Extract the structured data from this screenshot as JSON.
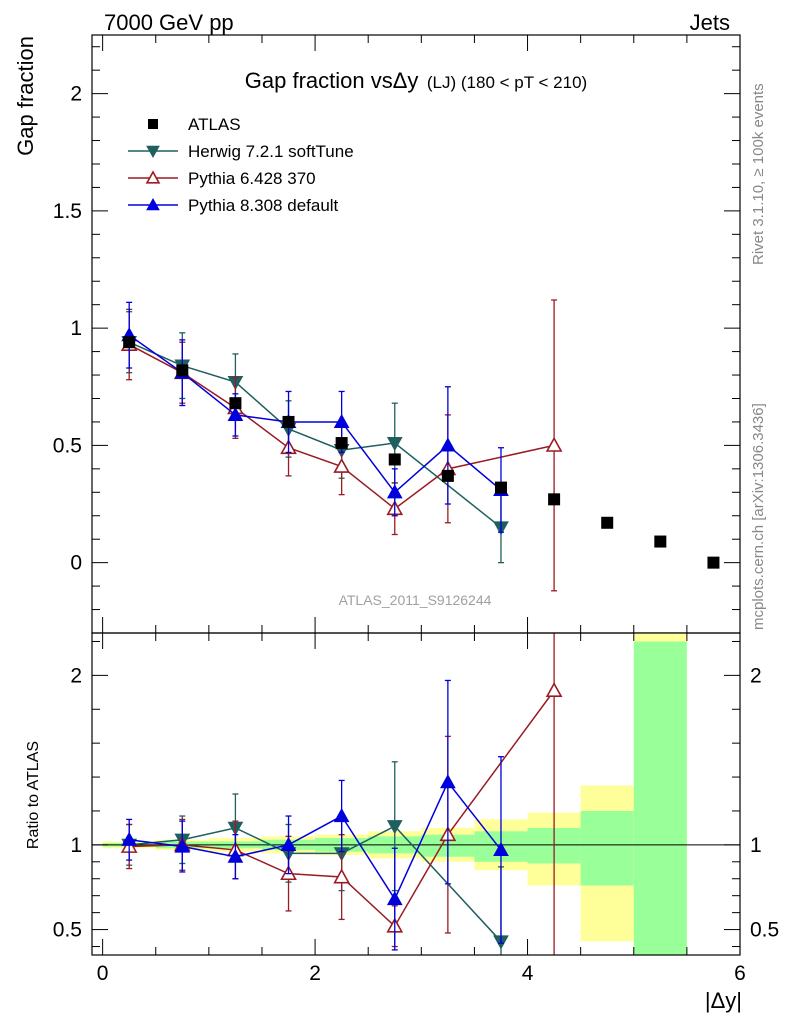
{
  "header": {
    "left": "7000 GeV pp",
    "right": "Jets"
  },
  "side_labels": {
    "rivet": "Rivet 3.1.10, ≥ 100k events",
    "mcplots": "mcplots.cern.ch [arXiv:1306.3436]"
  },
  "chart_data": {
    "type": "scatter",
    "title_main": "Gap fraction vsΔy",
    "title_sub": "(LJ) (180 < pT < 210)",
    "xlabel": "|Δy|",
    "ylabel_top": "Gap fraction",
    "ylabel_bottom": "Ratio to ATLAS",
    "watermark": "ATLAS_2011_S9126244",
    "xlim": [
      -0.1,
      6.0
    ],
    "top_ylim": [
      -0.3,
      2.25
    ],
    "bottom_ylim": [
      0.35,
      2.25
    ],
    "x_ticks": [
      0,
      2,
      4,
      6
    ],
    "top_y_ticks": [
      0,
      0.5,
      1,
      1.5,
      2
    ],
    "top_y_tick_labels": [
      "0",
      "0.5",
      "1",
      "1.5",
      "2"
    ],
    "bottom_y_ticks": [
      0.5,
      1,
      2
    ],
    "bottom_y_tick_labels": [
      "0.5",
      "1",
      "2"
    ],
    "x_tick_labels": [
      "0",
      "2",
      "4",
      "6"
    ],
    "data": {
      "name": "ATLAS",
      "color": "#000000",
      "x": [
        0.25,
        0.75,
        1.25,
        1.75,
        2.25,
        2.75,
        3.25,
        3.75,
        4.25,
        4.75,
        5.25,
        5.75
      ],
      "y": [
        0.94,
        0.82,
        0.68,
        0.6,
        0.51,
        0.44,
        0.37,
        0.32,
        0.27,
        0.17,
        0.09,
        0.0
      ]
    },
    "ratio_bands": [
      {
        "x0": 0.0,
        "x1": 0.5,
        "yellow": [
          0.98,
          1.02
        ],
        "green": [
          0.99,
          1.01
        ]
      },
      {
        "x0": 0.5,
        "x1": 1.0,
        "yellow": [
          0.97,
          1.03
        ],
        "green": [
          0.98,
          1.02
        ]
      },
      {
        "x0": 1.0,
        "x1": 1.5,
        "yellow": [
          0.96,
          1.04
        ],
        "green": [
          0.98,
          1.02
        ]
      },
      {
        "x0": 1.5,
        "x1": 2.0,
        "yellow": [
          0.95,
          1.05
        ],
        "green": [
          0.97,
          1.03
        ]
      },
      {
        "x0": 2.0,
        "x1": 2.5,
        "yellow": [
          0.94,
          1.06
        ],
        "green": [
          0.96,
          1.04
        ]
      },
      {
        "x0": 2.5,
        "x1": 3.0,
        "yellow": [
          0.92,
          1.08
        ],
        "green": [
          0.95,
          1.05
        ]
      },
      {
        "x0": 3.0,
        "x1": 3.5,
        "yellow": [
          0.9,
          1.1
        ],
        "green": [
          0.93,
          1.06
        ]
      },
      {
        "x0": 3.5,
        "x1": 4.0,
        "yellow": [
          0.85,
          1.15
        ],
        "green": [
          0.9,
          1.08
        ]
      },
      {
        "x0": 4.0,
        "x1": 4.5,
        "yellow": [
          0.76,
          1.19
        ],
        "green": [
          0.89,
          1.1
        ]
      },
      {
        "x0": 4.5,
        "x1": 5.0,
        "yellow": [
          0.43,
          1.35
        ],
        "green": [
          0.76,
          1.2
        ]
      },
      {
        "x0": 5.0,
        "x1": 5.5,
        "yellow": [
          0.35,
          2.25
        ],
        "green": [
          0.35,
          2.2
        ]
      }
    ],
    "series": [
      {
        "name": "Herwig 7.2.1 softTune",
        "color": "#1f5f5f",
        "marker": "triangle-down-filled",
        "x": [
          0.25,
          0.75,
          1.25,
          1.75,
          2.25,
          2.75,
          3.75
        ],
        "y": [
          0.94,
          0.84,
          0.77,
          0.57,
          0.48,
          0.51,
          0.15
        ],
        "err": [
          0.13,
          0.14,
          0.12,
          0.12,
          0.12,
          0.17,
          0.15
        ],
        "ratio": [
          1.0,
          1.03,
          1.1,
          0.95,
          0.95,
          1.11,
          0.43
        ],
        "ratio_err": [
          0.12,
          0.14,
          0.2,
          0.17,
          0.22,
          0.38,
          0.44
        ]
      },
      {
        "name": "Pythia 6.428 370",
        "color": "#9a1b24",
        "marker": "triangle-up-open",
        "x": [
          0.25,
          0.75,
          1.25,
          1.75,
          2.25,
          2.75,
          3.25,
          4.25
        ],
        "y": [
          0.93,
          0.81,
          0.66,
          0.49,
          0.41,
          0.23,
          0.4,
          0.5
        ],
        "err": [
          0.15,
          0.13,
          0.13,
          0.12,
          0.12,
          0.11,
          0.23,
          0.62
        ],
        "ratio": [
          0.99,
          1.0,
          0.97,
          0.83,
          0.81,
          0.52,
          1.06,
          1.91
        ],
        "ratio_err": [
          0.13,
          0.15,
          0.17,
          0.22,
          0.25,
          0.12,
          0.58,
          1.6
        ]
      },
      {
        "name": "Pythia 8.308 default",
        "color": "#0000dd",
        "marker": "triangle-up-filled",
        "x": [
          0.25,
          0.75,
          1.25,
          1.75,
          2.25,
          2.75,
          3.25,
          3.75
        ],
        "y": [
          0.97,
          0.81,
          0.63,
          0.6,
          0.6,
          0.3,
          0.5,
          0.31
        ],
        "err": [
          0.14,
          0.14,
          0.09,
          0.13,
          0.13,
          0.1,
          0.25,
          0.18
        ],
        "ratio": [
          1.03,
          0.99,
          0.93,
          1.0,
          1.17,
          0.68,
          1.37,
          0.97
        ],
        "ratio_err": [
          0.12,
          0.15,
          0.13,
          0.17,
          0.21,
          0.3,
          0.6,
          0.55
        ]
      }
    ],
    "legend_position": "top-left"
  }
}
